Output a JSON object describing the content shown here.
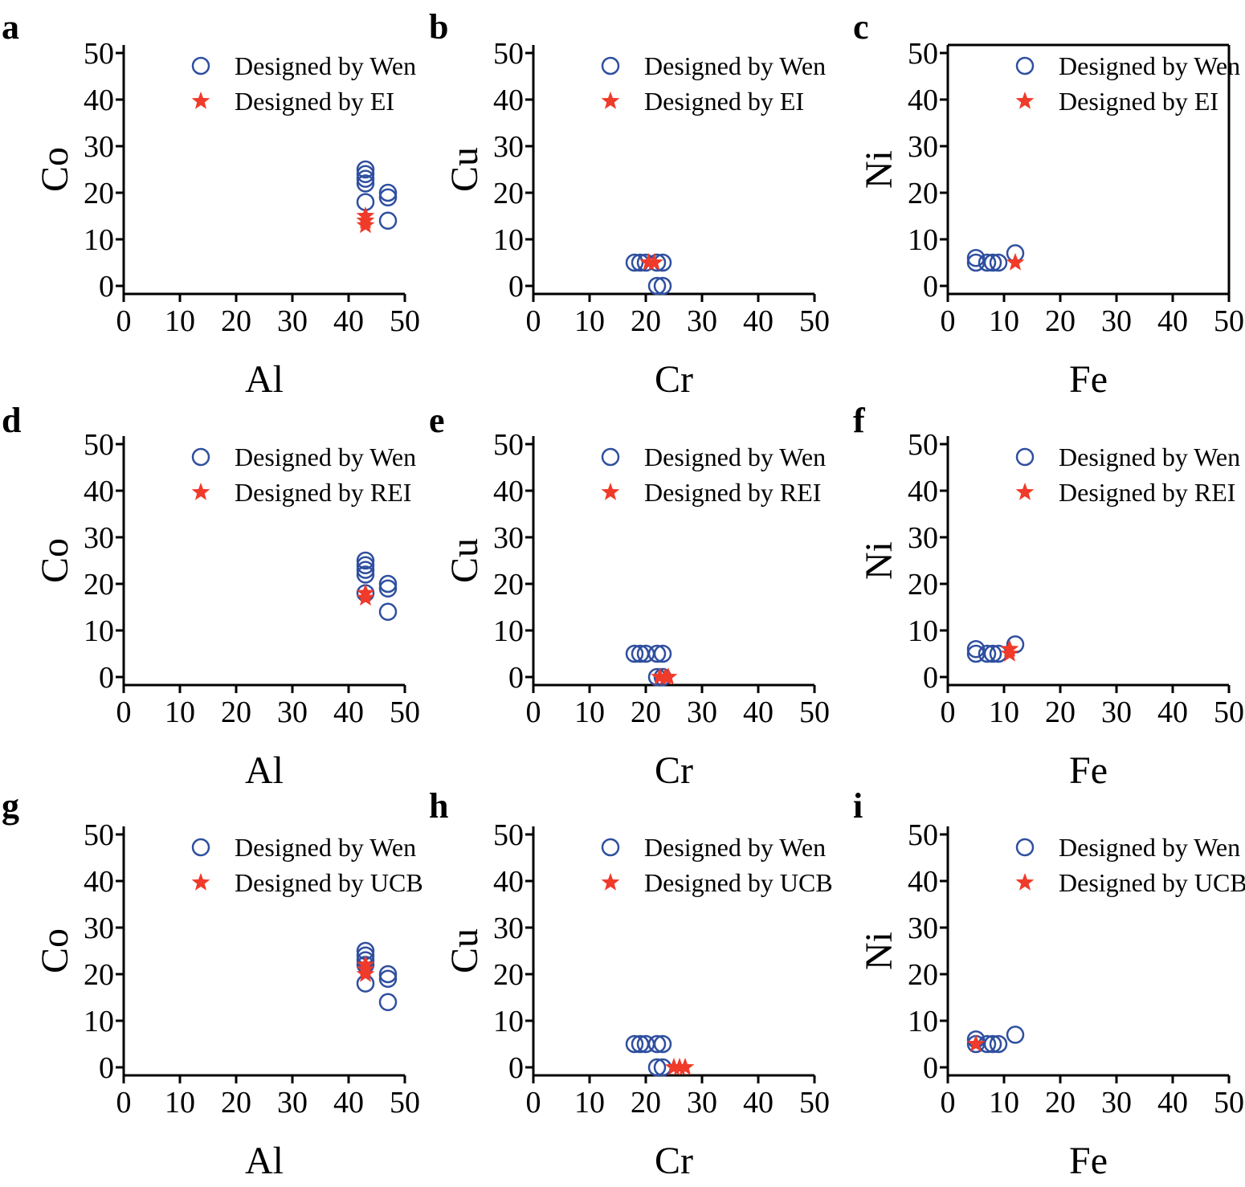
{
  "colors": {
    "wen": "#2f4f9f",
    "designed": "#f03a2a",
    "axis": "#000000"
  },
  "chart_data": [
    {
      "panel": "a",
      "type": "scatter",
      "xlabel": "Al",
      "ylabel": "Co",
      "xlim": [
        0,
        50
      ],
      "ylim": [
        0,
        50
      ],
      "xticks": [
        "0",
        "10",
        "20",
        "30",
        "40",
        "50"
      ],
      "yticks": [
        "0",
        "10",
        "20",
        "30",
        "40",
        "50"
      ],
      "legend": {
        "position": "top-right",
        "entries": [
          "Designed by Wen",
          "Designed by EI"
        ]
      },
      "series": [
        {
          "name": "Designed by Wen",
          "marker": "circle",
          "points": [
            [
              43,
              25
            ],
            [
              43,
              24
            ],
            [
              43,
              23
            ],
            [
              43,
              22
            ],
            [
              43,
              18
            ],
            [
              47,
              20
            ],
            [
              47,
              19
            ],
            [
              47,
              14
            ]
          ]
        },
        {
          "name": "Designed by EI",
          "marker": "star",
          "points": [
            [
              43,
              15
            ],
            [
              43,
              14
            ],
            [
              43,
              13
            ]
          ]
        }
      ]
    },
    {
      "panel": "b",
      "type": "scatter",
      "xlabel": "Cr",
      "ylabel": "Cu",
      "xlim": [
        0,
        50
      ],
      "ylim": [
        0,
        50
      ],
      "xticks": [
        "0",
        "10",
        "20",
        "30",
        "40",
        "50"
      ],
      "yticks": [
        "0",
        "10",
        "20",
        "30",
        "40",
        "50"
      ],
      "legend": {
        "position": "top-right",
        "entries": [
          "Designed by Wen",
          "Designed by EI"
        ]
      },
      "series": [
        {
          "name": "Designed by Wen",
          "marker": "circle",
          "points": [
            [
              18,
              5
            ],
            [
              19,
              5
            ],
            [
              20,
              5
            ],
            [
              22,
              5
            ],
            [
              23,
              5
            ],
            [
              22,
              0
            ],
            [
              23,
              0
            ]
          ]
        },
        {
          "name": "Designed by EI",
          "marker": "star",
          "points": [
            [
              20.5,
              5
            ],
            [
              21.5,
              5
            ]
          ]
        }
      ]
    },
    {
      "panel": "c",
      "type": "scatter",
      "xlabel": "Fe",
      "ylabel": "Ni",
      "xlim": [
        0,
        50
      ],
      "ylim": [
        0,
        50
      ],
      "xticks": [
        "0",
        "10",
        "20",
        "30",
        "40",
        "50"
      ],
      "yticks": [
        "0",
        "10",
        "20",
        "30",
        "40",
        "50"
      ],
      "legend": {
        "position": "top-right",
        "entries": [
          "Designed by Wen",
          "Designed by EI"
        ]
      },
      "series": [
        {
          "name": "Designed by Wen",
          "marker": "circle",
          "points": [
            [
              5,
              6
            ],
            [
              5,
              5
            ],
            [
              7,
              5
            ],
            [
              8,
              5
            ],
            [
              9,
              5
            ],
            [
              12,
              7
            ]
          ]
        },
        {
          "name": "Designed by EI",
          "marker": "star",
          "points": [
            [
              12,
              5
            ]
          ]
        }
      ]
    },
    {
      "panel": "d",
      "type": "scatter",
      "xlabel": "Al",
      "ylabel": "Co",
      "xlim": [
        0,
        50
      ],
      "ylim": [
        0,
        50
      ],
      "xticks": [
        "0",
        "10",
        "20",
        "30",
        "40",
        "50"
      ],
      "yticks": [
        "0",
        "10",
        "20",
        "30",
        "40",
        "50"
      ],
      "legend": {
        "position": "top-right",
        "entries": [
          "Designed by Wen",
          "Designed by REI"
        ]
      },
      "series": [
        {
          "name": "Designed by Wen",
          "marker": "circle",
          "points": [
            [
              43,
              25
            ],
            [
              43,
              24
            ],
            [
              43,
              23
            ],
            [
              43,
              22
            ],
            [
              43,
              18
            ],
            [
              47,
              20
            ],
            [
              47,
              19
            ],
            [
              47,
              14
            ]
          ]
        },
        {
          "name": "Designed by REI",
          "marker": "star",
          "points": [
            [
              43,
              18
            ],
            [
              43,
              17
            ]
          ]
        }
      ]
    },
    {
      "panel": "e",
      "type": "scatter",
      "xlabel": "Cr",
      "ylabel": "Cu",
      "xlim": [
        0,
        50
      ],
      "ylim": [
        0,
        50
      ],
      "xticks": [
        "0",
        "10",
        "20",
        "30",
        "40",
        "50"
      ],
      "yticks": [
        "0",
        "10",
        "20",
        "30",
        "40",
        "50"
      ],
      "legend": {
        "position": "top-right",
        "entries": [
          "Designed by Wen",
          "Designed by REI"
        ]
      },
      "series": [
        {
          "name": "Designed by Wen",
          "marker": "circle",
          "points": [
            [
              18,
              5
            ],
            [
              19,
              5
            ],
            [
              20,
              5
            ],
            [
              22,
              5
            ],
            [
              23,
              5
            ],
            [
              22,
              0
            ],
            [
              23,
              0
            ]
          ]
        },
        {
          "name": "Designed by REI",
          "marker": "star",
          "points": [
            [
              22.5,
              0
            ],
            [
              23.5,
              0
            ],
            [
              24,
              0
            ]
          ]
        }
      ]
    },
    {
      "panel": "f",
      "type": "scatter",
      "xlabel": "Fe",
      "ylabel": "Ni",
      "xlim": [
        0,
        50
      ],
      "ylim": [
        0,
        50
      ],
      "xticks": [
        "0",
        "10",
        "20",
        "30",
        "40",
        "50"
      ],
      "yticks": [
        "0",
        "10",
        "20",
        "30",
        "40",
        "50"
      ],
      "legend": {
        "position": "top-right",
        "entries": [
          "Designed by Wen",
          "Designed by REI"
        ]
      },
      "series": [
        {
          "name": "Designed by Wen",
          "marker": "circle",
          "points": [
            [
              5,
              6
            ],
            [
              5,
              5
            ],
            [
              7,
              5
            ],
            [
              8,
              5
            ],
            [
              9,
              5
            ],
            [
              12,
              7
            ]
          ]
        },
        {
          "name": "Designed by REI",
          "marker": "star",
          "points": [
            [
              11,
              6
            ],
            [
              11,
              5
            ]
          ]
        }
      ]
    },
    {
      "panel": "g",
      "type": "scatter",
      "xlabel": "Al",
      "ylabel": "Co",
      "xlim": [
        0,
        50
      ],
      "ylim": [
        0,
        50
      ],
      "xticks": [
        "0",
        "10",
        "20",
        "30",
        "40",
        "50"
      ],
      "yticks": [
        "0",
        "10",
        "20",
        "30",
        "40",
        "50"
      ],
      "legend": {
        "position": "top-right",
        "entries": [
          "Designed by Wen",
          "Designed by UCB"
        ]
      },
      "series": [
        {
          "name": "Designed by Wen",
          "marker": "circle",
          "points": [
            [
              43,
              25
            ],
            [
              43,
              24
            ],
            [
              43,
              23
            ],
            [
              43,
              22
            ],
            [
              43,
              18
            ],
            [
              47,
              20
            ],
            [
              47,
              19
            ],
            [
              47,
              14
            ]
          ]
        },
        {
          "name": "Designed by UCB",
          "marker": "star",
          "points": [
            [
              43,
              22
            ],
            [
              43,
              21
            ],
            [
              43,
              20
            ]
          ]
        }
      ]
    },
    {
      "panel": "h",
      "type": "scatter",
      "xlabel": "Cr",
      "ylabel": "Cu",
      "xlim": [
        0,
        50
      ],
      "ylim": [
        0,
        50
      ],
      "xticks": [
        "0",
        "10",
        "20",
        "30",
        "40",
        "50"
      ],
      "yticks": [
        "0",
        "10",
        "20",
        "30",
        "40",
        "50"
      ],
      "legend": {
        "position": "top-right",
        "entries": [
          "Designed by Wen",
          "Designed by UCB"
        ]
      },
      "series": [
        {
          "name": "Designed by Wen",
          "marker": "circle",
          "points": [
            [
              18,
              5
            ],
            [
              19,
              5
            ],
            [
              20,
              5
            ],
            [
              22,
              5
            ],
            [
              23,
              5
            ],
            [
              22,
              0
            ],
            [
              23,
              0
            ]
          ]
        },
        {
          "name": "Designed by UCB",
          "marker": "star",
          "points": [
            [
              25,
              0
            ],
            [
              26,
              0
            ],
            [
              27,
              0
            ]
          ]
        }
      ]
    },
    {
      "panel": "i",
      "type": "scatter",
      "xlabel": "Fe",
      "ylabel": "Ni",
      "xlim": [
        0,
        50
      ],
      "ylim": [
        0,
        50
      ],
      "xticks": [
        "0",
        "10",
        "20",
        "30",
        "40",
        "50"
      ],
      "yticks": [
        "0",
        "10",
        "20",
        "30",
        "40",
        "50"
      ],
      "legend": {
        "position": "top-right",
        "entries": [
          "Designed by Wen",
          "Designed by UCB"
        ]
      },
      "series": [
        {
          "name": "Designed by Wen",
          "marker": "circle",
          "points": [
            [
              5,
              6
            ],
            [
              5,
              5
            ],
            [
              7,
              5
            ],
            [
              8,
              5
            ],
            [
              9,
              5
            ],
            [
              12,
              7
            ]
          ]
        },
        {
          "name": "Designed by UCB",
          "marker": "star",
          "points": [
            [
              5,
              5
            ]
          ]
        }
      ]
    }
  ]
}
